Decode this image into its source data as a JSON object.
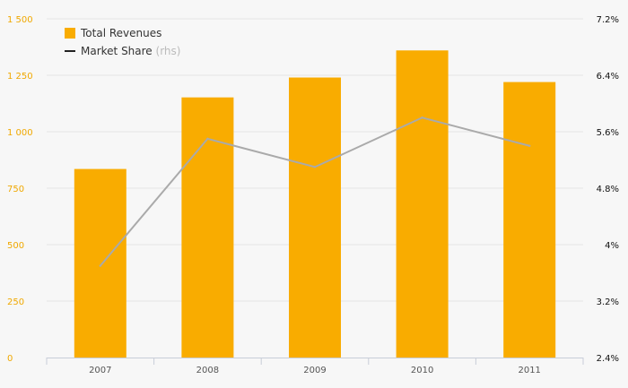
{
  "chart_data": {
    "type": "bar",
    "categories": [
      "2007",
      "2008",
      "2009",
      "2010",
      "2011"
    ],
    "series": [
      {
        "name": "Total Revenues",
        "type": "bar",
        "axis": "left",
        "values": [
          835,
          1152,
          1240,
          1360,
          1220
        ]
      },
      {
        "name": "Market Share",
        "type": "line",
        "axis": "right",
        "values": [
          3.7,
          5.5,
          5.1,
          5.8,
          5.4
        ]
      }
    ],
    "legend": {
      "bar_label": "Total Revenues",
      "line_label": "Market Share",
      "line_suffix": "(rhs)"
    },
    "yleft": {
      "ticks": [
        "0",
        "250",
        "500",
        "750",
        "1 000",
        "1 250",
        "1 500"
      ],
      "min": 0,
      "max": 1500
    },
    "yright": {
      "ticks": [
        "2.4%",
        "3.2%",
        "4%",
        "4.8%",
        "5.6%",
        "6.4%",
        "7.2%"
      ],
      "min": 2.4,
      "max": 7.2
    },
    "colors": {
      "bar": "#f9ac00",
      "line": "#aaaaaa",
      "left_axis_text": "#f0a800",
      "right_axis_text": "#111111",
      "grid": "#e6e6e6"
    },
    "grid": true
  }
}
